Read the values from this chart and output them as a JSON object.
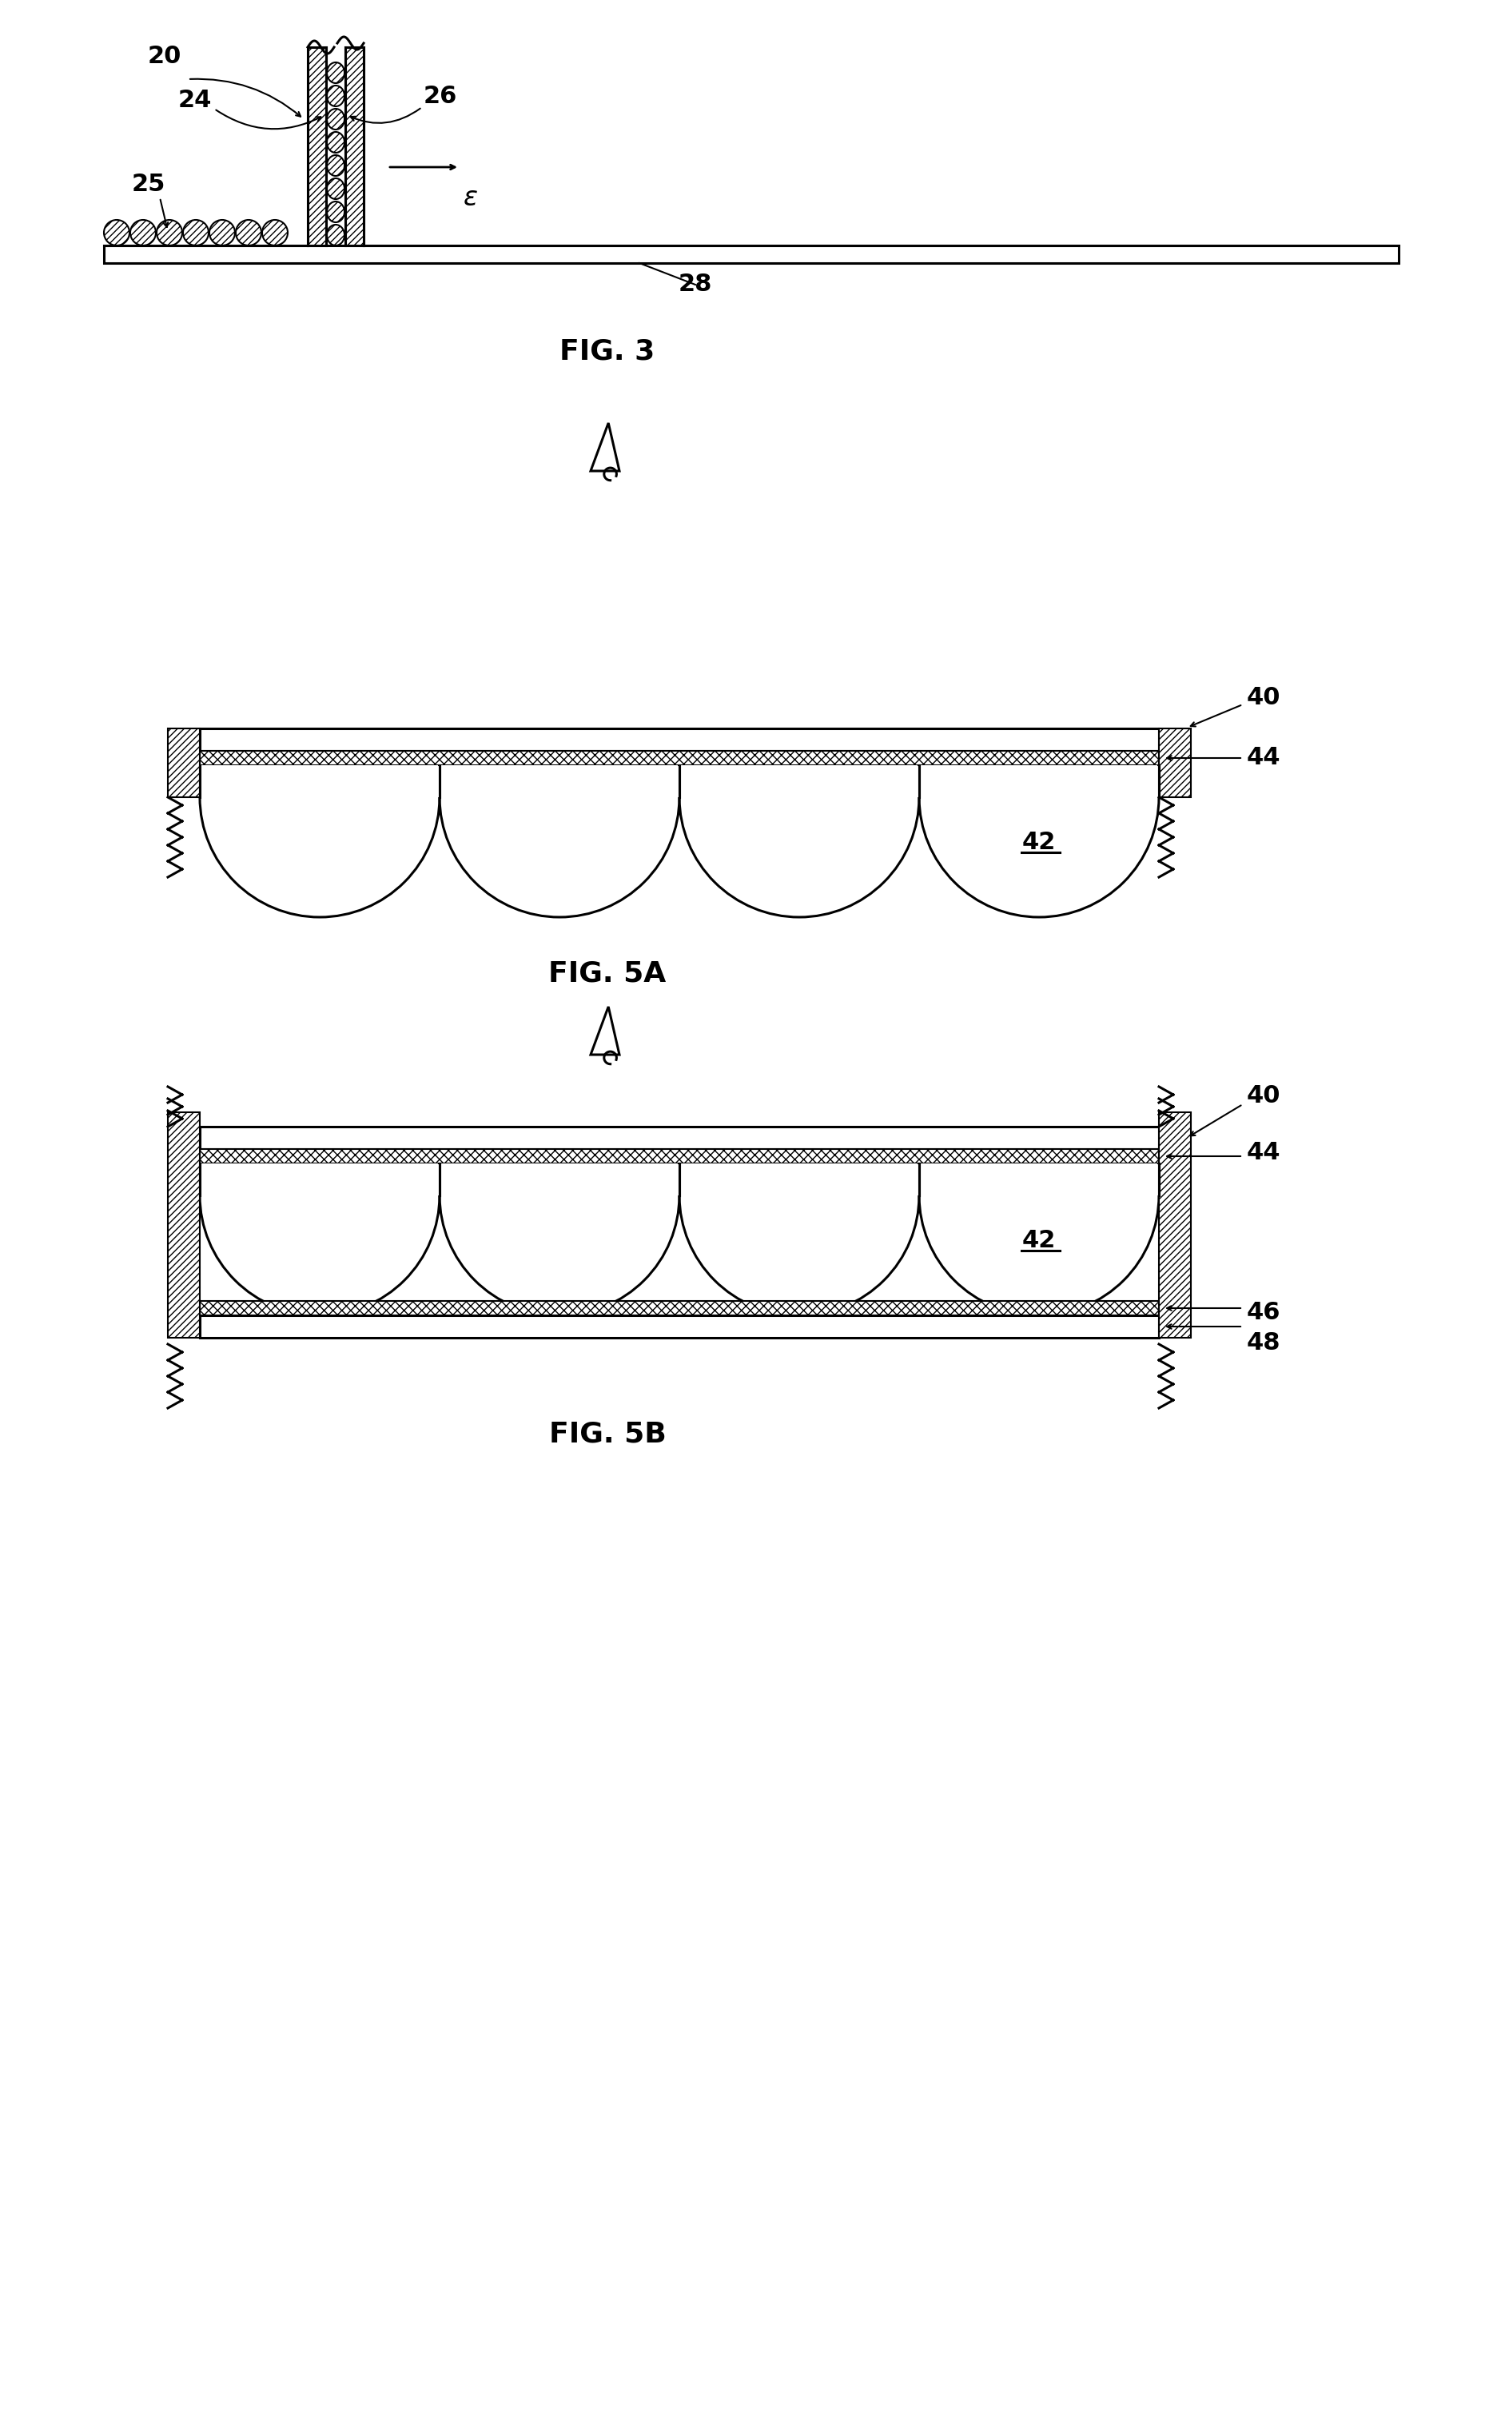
{
  "fig_width": 18.63,
  "fig_height": 30.29,
  "bg_color": "#ffffff",
  "fig3_label": "FIG. 3",
  "fig5a_label": "FIG. 5A",
  "fig5b_label": "FIG. 5B",
  "label_20": "20",
  "label_24": "24",
  "label_25": "25",
  "label_26": "26",
  "label_28": "28",
  "label_40": "40",
  "label_42": "42",
  "label_44": "44",
  "label_46": "46",
  "label_48": "48",
  "epsilon": "ε",
  "font_size_labels": 20,
  "font_size_fig": 26
}
